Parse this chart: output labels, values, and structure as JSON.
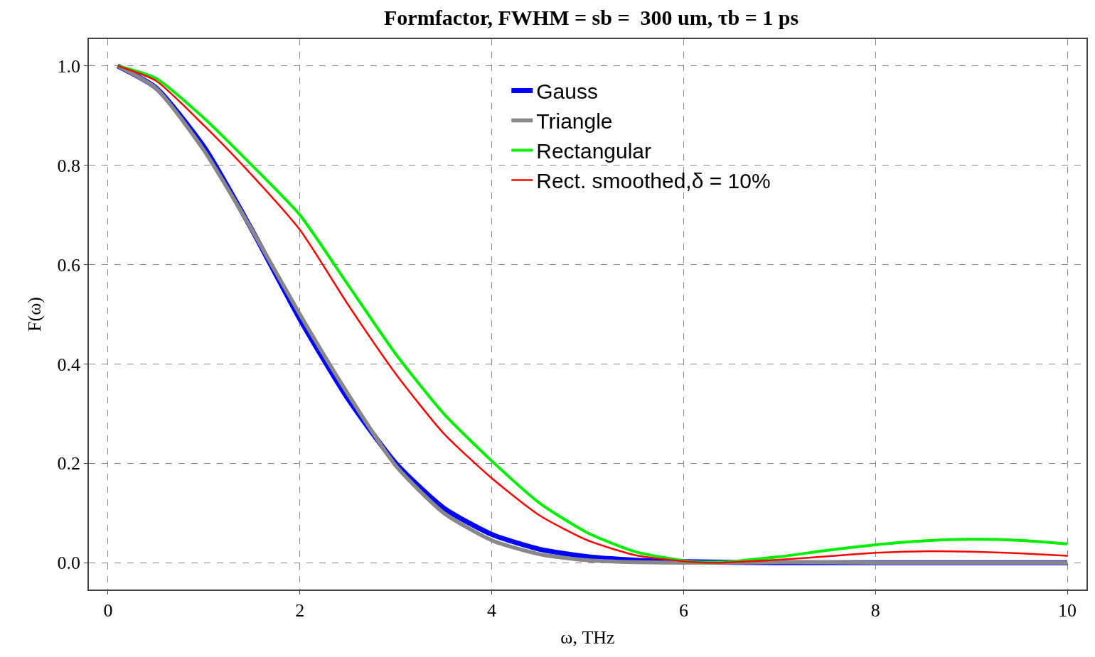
{
  "chart_data": {
    "type": "line",
    "title": "Formfactor, FWHM = sb =  300 um, τb = 1 ps",
    "xlabel": "ω, THz",
    "ylabel": "F(ω)",
    "xlim": [
      -0.2,
      10.2
    ],
    "xticks": [
      0,
      2,
      4,
      6,
      8,
      10
    ],
    "ylim": [
      -0.054,
      1.054
    ],
    "yticks": [
      {
        "value": 0,
        "label": "0.0"
      },
      0.2,
      0.4,
      0.6,
      0.8,
      {
        "value": 1,
        "label": "1.0"
      }
    ],
    "grid": true,
    "legend": "top right",
    "line_style": "solid",
    "series": [
      {
        "name": "Gauss",
        "color": "#0000ff",
        "x": [
          0.1,
          0.5,
          1,
          1.5,
          2,
          2.5,
          3,
          3.5,
          4,
          4.5,
          5,
          5.5,
          6,
          7,
          8,
          9,
          10
        ],
        "values": [
          1.0,
          0.956,
          0.837,
          0.67,
          0.49,
          0.33,
          0.2,
          0.11,
          0.057,
          0.027,
          0.012,
          0.005,
          0.002,
          0,
          0,
          0,
          0
        ]
      },
      {
        "name": "Triangle",
        "color": "#888888",
        "x": [
          0.1,
          0.5,
          1,
          1.5,
          2,
          2.5,
          3,
          3.5,
          4,
          4.5,
          5,
          5.5,
          6,
          7,
          8,
          9,
          10
        ],
        "values": [
          1.0,
          0.955,
          0.83,
          0.67,
          0.5,
          0.34,
          0.195,
          0.1,
          0.045,
          0.017,
          0.005,
          0.001,
          0,
          0.001,
          0,
          0,
          0
        ]
      },
      {
        "name": "Rectangular",
        "color": "#00ee00",
        "x": [
          0.1,
          0.5,
          1,
          1.5,
          2,
          2.5,
          3,
          3.5,
          4,
          4.5,
          5,
          5.5,
          6,
          6.3,
          7,
          7.5,
          8,
          8.5,
          9,
          9.5,
          10
        ],
        "values": [
          1.0,
          0.975,
          0.895,
          0.8,
          0.7,
          0.56,
          0.42,
          0.3,
          0.205,
          0.12,
          0.06,
          0.022,
          0.004,
          0,
          0.012,
          0.025,
          0.036,
          0.044,
          0.047,
          0.045,
          0.038
        ]
      },
      {
        "name": "Rect. smoothed,δ = 10%",
        "color": "#ff0000",
        "x": [
          0.1,
          0.5,
          1,
          1.5,
          2,
          2.5,
          3,
          3.5,
          4,
          4.5,
          5,
          5.5,
          6,
          6.3,
          7,
          7.5,
          8,
          8.5,
          9,
          9.5,
          10
        ],
        "values": [
          1.0,
          0.97,
          0.88,
          0.78,
          0.67,
          0.52,
          0.38,
          0.26,
          0.17,
          0.095,
          0.045,
          0.015,
          0.003,
          0,
          0.006,
          0.013,
          0.02,
          0.023,
          0.022,
          0.019,
          0.014
        ]
      }
    ]
  }
}
